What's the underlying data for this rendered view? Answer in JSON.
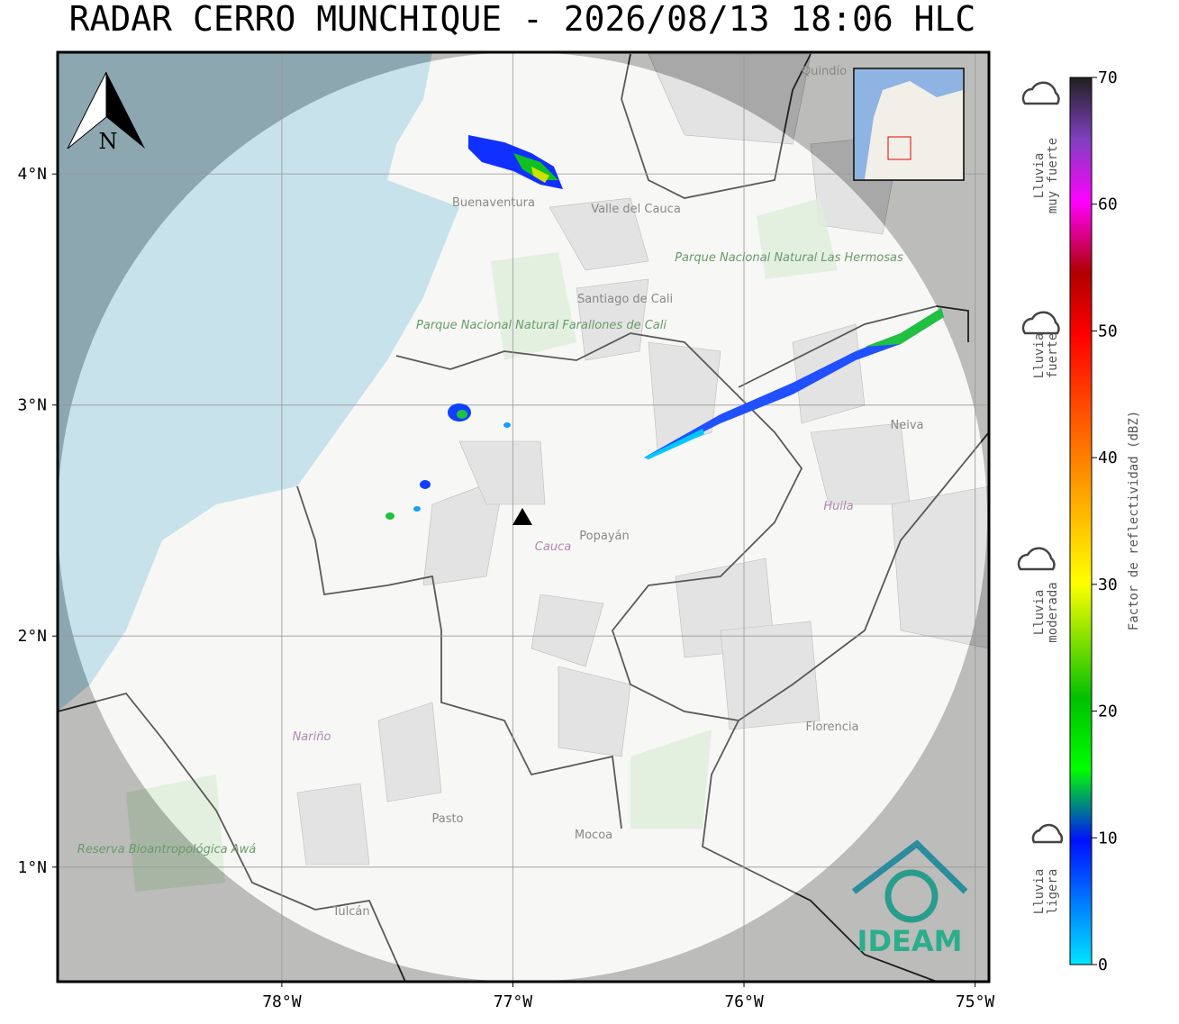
{
  "title": "RADAR CERRO MUNCHIQUE - 2026/08/13 18:06 HLC",
  "map": {
    "xlim": [
      -78.97,
      -74.94
    ],
    "ylim": [
      0.504,
      4.527
    ],
    "xticks": [
      {
        "value": -78,
        "label": "78°W"
      },
      {
        "value": -77,
        "label": "77°W"
      },
      {
        "value": -76,
        "label": "76°W"
      },
      {
        "value": -75,
        "label": "75°W"
      }
    ],
    "yticks": [
      {
        "value": 1,
        "label": "1°N"
      },
      {
        "value": 2,
        "label": "2°N"
      },
      {
        "value": 3,
        "label": "3°N"
      },
      {
        "value": 4,
        "label": "4°N"
      }
    ],
    "grid": true,
    "north_label": "N",
    "places": [
      "Quindío",
      "Buenaventura",
      "Valle del Cauca",
      "Parque Nacional Natural Las Hermosas",
      "Santiago de Cali",
      "Parque Nacional Natural Farallones de Cali",
      "Neiva",
      "Popayán",
      "Cauca",
      "Huila",
      "Nariño",
      "Pasto",
      "Mocoa",
      "Florencia",
      "Tulcán",
      "Reserva Bioantropológica Awá"
    ],
    "logo": "IDEAM"
  },
  "colorbar": {
    "label": "Factor de reflectividad (dBZ)",
    "ylim": [
      0,
      70
    ],
    "yticks": [
      0,
      10,
      20,
      30,
      40,
      50,
      60,
      70
    ]
  },
  "legend": [
    {
      "lines": [
        "Lluvia",
        "muy fuerte"
      ]
    },
    {
      "lines": [
        "Lluvia",
        "fuerte"
      ]
    },
    {
      "lines": [
        "Lluvia",
        "moderada"
      ]
    },
    {
      "lines": [
        "Lluvia",
        "ligera"
      ]
    }
  ]
}
